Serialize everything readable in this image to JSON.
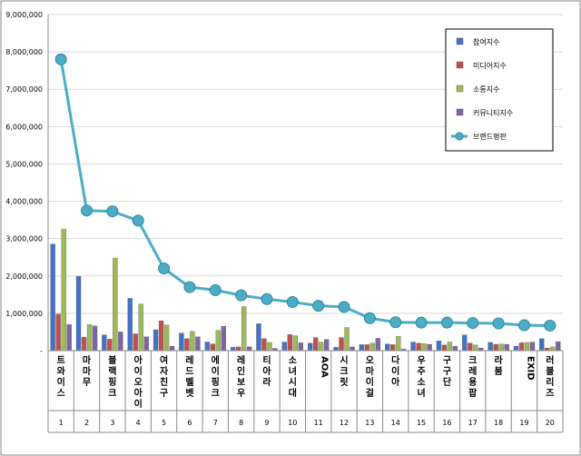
{
  "chart_data": {
    "type": "bar",
    "title": "",
    "xlabel": "",
    "ylabel": "",
    "ylim": [
      0,
      9000000
    ],
    "yticks": [
      0,
      1000000,
      2000000,
      3000000,
      4000000,
      5000000,
      6000000,
      7000000,
      8000000,
      9000000
    ],
    "ytick_labels": [
      "-",
      "1,000,000",
      "2,000,000",
      "3,000,000",
      "4,000,000",
      "5,000,000",
      "6,000,000",
      "7,000,000",
      "8,000,000",
      "9,000,000"
    ],
    "categories": [
      "트와이스",
      "마마무",
      "블랙핑크",
      "아이오아이",
      "여자친구",
      "레드벨벳",
      "에이핑크",
      "레인보우",
      "티아라",
      "소녀시대",
      "AOA",
      "시크릿",
      "오마이걸",
      "다이아",
      "우주소녀",
      "구구단",
      "크레용팝",
      "라붐",
      "EXID",
      "러블리즈"
    ],
    "ranks": [
      "1",
      "2",
      "3",
      "4",
      "5",
      "6",
      "7",
      "8",
      "9",
      "10",
      "11",
      "12",
      "13",
      "14",
      "15",
      "16",
      "17",
      "18",
      "19",
      "20"
    ],
    "grid": true,
    "legend_position": "top-right",
    "series": [
      {
        "name": "참여지수",
        "type": "bar",
        "color": "#4472c4",
        "values": [
          2850000,
          1990000,
          420000,
          1400000,
          560000,
          470000,
          230000,
          90000,
          720000,
          230000,
          200000,
          90000,
          160000,
          180000,
          230000,
          260000,
          420000,
          220000,
          120000,
          320000
        ]
      },
      {
        "name": "미디어지수",
        "type": "bar",
        "color": "#c0504d",
        "values": [
          980000,
          360000,
          310000,
          450000,
          800000,
          320000,
          180000,
          100000,
          320000,
          430000,
          350000,
          350000,
          160000,
          160000,
          200000,
          150000,
          200000,
          170000,
          210000,
          70000
        ]
      },
      {
        "name": "소통지수",
        "type": "bar",
        "color": "#9bbb59",
        "values": [
          3250000,
          700000,
          2480000,
          1250000,
          690000,
          520000,
          540000,
          1180000,
          220000,
          400000,
          230000,
          620000,
          200000,
          380000,
          190000,
          230000,
          150000,
          180000,
          220000,
          100000
        ]
      },
      {
        "name": "커뮤니티지수",
        "type": "bar",
        "color": "#8064a2",
        "values": [
          700000,
          660000,
          500000,
          370000,
          120000,
          370000,
          650000,
          100000,
          60000,
          210000,
          300000,
          100000,
          330000,
          40000,
          170000,
          120000,
          70000,
          170000,
          230000,
          240000
        ]
      },
      {
        "name": "브랜드평판",
        "type": "line",
        "color": "#4bacc6",
        "values": [
          7800000,
          3750000,
          3730000,
          3480000,
          2200000,
          1700000,
          1620000,
          1480000,
          1380000,
          1300000,
          1200000,
          1170000,
          870000,
          760000,
          750000,
          750000,
          740000,
          730000,
          680000,
          670000
        ]
      }
    ]
  }
}
